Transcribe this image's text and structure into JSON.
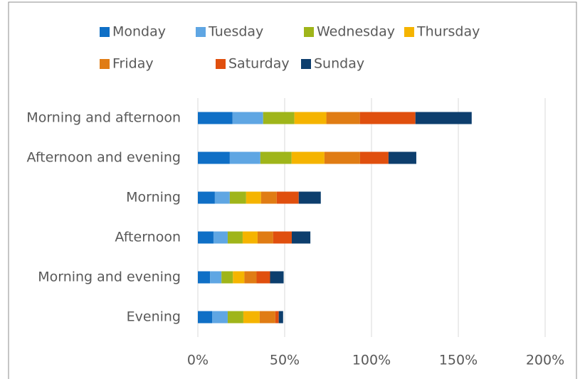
{
  "chart_data": {
    "type": "stacked-bar-horizontal",
    "categories": [
      "Morning and afternoon",
      "Afternoon and evening",
      "Morning",
      "Afternoon",
      "Morning and evening",
      "Evening"
    ],
    "series": [
      {
        "name": "Monday",
        "color": "#0f6fc6",
        "values": [
          20,
          18.4,
          9.8,
          9,
          7,
          8.2
        ]
      },
      {
        "name": "Tuesday",
        "color": "#5fa6e3",
        "values": [
          17.6,
          17.6,
          8.6,
          8.2,
          6.6,
          9
        ]
      },
      {
        "name": "Wednesday",
        "color": "#9fb51a",
        "values": [
          18,
          18,
          9.4,
          8.6,
          6.6,
          9
        ]
      },
      {
        "name": "Thursday",
        "color": "#f5b400",
        "values": [
          18.4,
          18.9,
          8.6,
          8.6,
          6.6,
          9.4
        ]
      },
      {
        "name": "Friday",
        "color": "#e07c14",
        "values": [
          19.3,
          20.5,
          9,
          9,
          7,
          9
        ]
      },
      {
        "name": "Saturday",
        "color": "#e04f0e",
        "values": [
          32,
          16.4,
          12.7,
          10.7,
          7.8,
          2
        ]
      },
      {
        "name": "Sunday",
        "color": "#0d3e6d",
        "values": [
          32.4,
          16,
          12.7,
          10.7,
          7.8,
          2.5
        ]
      }
    ],
    "xlim": [
      0,
      200
    ],
    "xticks": [
      {
        "value": 0,
        "label": "0%"
      },
      {
        "value": 50,
        "label": "50%"
      },
      {
        "value": 100,
        "label": "100%"
      },
      {
        "value": 150,
        "label": "150%"
      },
      {
        "value": 200,
        "label": "200%"
      }
    ],
    "grid": true,
    "legend": "top"
  }
}
